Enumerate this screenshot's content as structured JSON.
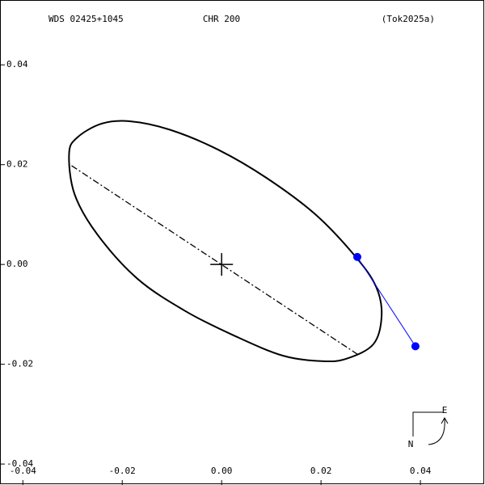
{
  "chart_data": {
    "type": "orbit",
    "header": [
      "WDS 02425+1045",
      "CHR 200",
      "(Tok2025a)"
    ],
    "xlim": [
      -0.0446,
      0.053
    ],
    "ylim": [
      -0.0442,
      0.053
    ],
    "xticks": [
      -0.04,
      -0.02,
      {
        "value": 0,
        "label": "0.00"
      },
      0.02,
      0.04
    ],
    "yticks": [
      -0.04,
      -0.02,
      {
        "value": 0,
        "label": "0.00"
      },
      0.02,
      0.04
    ],
    "orbit": {
      "color": "#000000",
      "x": [
        -0.0307,
        -0.0291,
        -0.0242,
        -0.0185,
        -0.0104,
        -0.0007,
        0.0091,
        0.0189,
        0.027,
        0.0311,
        0.0322,
        0.0306,
        0.0254,
        0.0205,
        0.0124,
        0.0026,
        -0.0072,
        -0.0169,
        -0.025,
        -0.0296
      ],
      "y": [
        0.0222,
        0.0254,
        0.0282,
        0.0287,
        0.027,
        0.023,
        0.0173,
        0.01,
        0.0015,
        -0.0045,
        -0.0102,
        -0.0159,
        -0.0188,
        -0.0194,
        -0.0183,
        -0.0143,
        -0.0094,
        -0.0029,
        0.006,
        0.0141
      ]
    },
    "line_of_nodes": {
      "color": "#000000",
      "x": [
        -0.0302,
        0.0278
      ],
      "y": [
        0.0198,
        -0.0183
      ]
    },
    "primary": {
      "x": 0,
      "y": 0
    },
    "observations": {
      "color": "#0000ff",
      "x": [
        0.0273,
        0.039
      ],
      "y": [
        0.0015,
        -0.0164
      ]
    },
    "compass": [
      "E",
      "N"
    ]
  }
}
